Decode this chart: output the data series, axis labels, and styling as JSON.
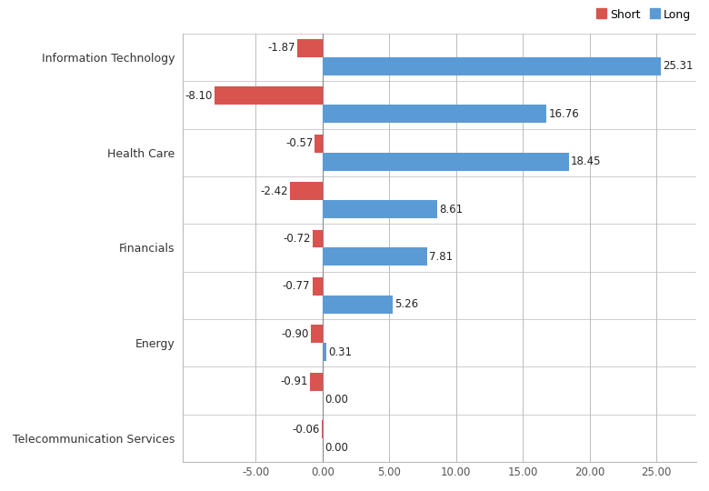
{
  "groups": [
    {
      "label": "Information Technology",
      "short": -1.87,
      "long": 25.31
    },
    {
      "label": "",
      "short": -8.1,
      "long": 16.76
    },
    {
      "label": "Health Care",
      "short": -0.57,
      "long": 18.45
    },
    {
      "label": "",
      "short": -2.42,
      "long": 8.61
    },
    {
      "label": "Financials",
      "short": -0.72,
      "long": 7.81
    },
    {
      "label": "",
      "short": -0.77,
      "long": 5.26
    },
    {
      "label": "Energy",
      "short": -0.9,
      "long": 0.31
    },
    {
      "label": "",
      "short": -0.91,
      "long": 0.0
    },
    {
      "label": "Telecommunication Services",
      "short": -0.06,
      "long": 0.0
    }
  ],
  "short_color": "#d9534f",
  "long_color": "#5b9bd5",
  "bg_color": "#ffffff",
  "grid_color": "#bbbbbb",
  "xlim": [
    -10.5,
    28
  ],
  "xticks": [
    -5.0,
    0.0,
    5.0,
    10.0,
    15.0,
    20.0,
    25.0
  ],
  "bar_height": 0.38,
  "label_fontsize": 8.5,
  "tick_fontsize": 8.5,
  "category_fontsize": 9,
  "legend_labels": [
    "Short",
    "Long"
  ],
  "legend_marker_size": 10
}
